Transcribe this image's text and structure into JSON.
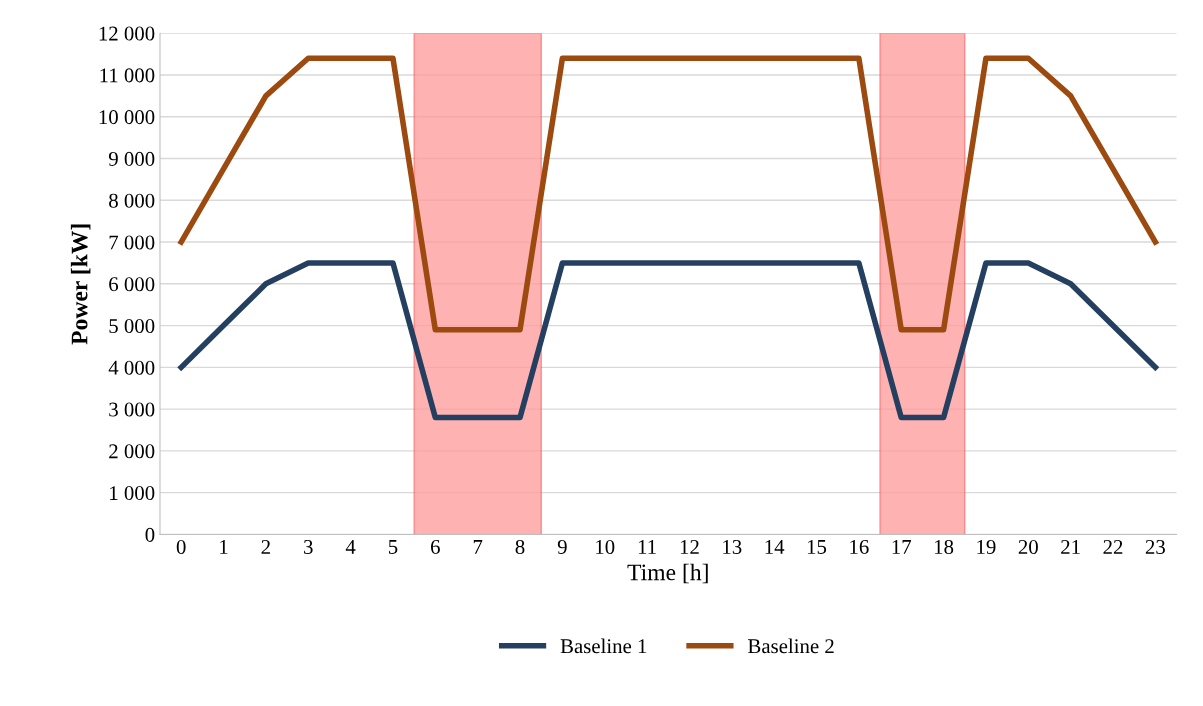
{
  "chart_data": {
    "type": "line",
    "xlabel": "Time [h]",
    "ylabel": "Power [kW]",
    "x": [
      0,
      1,
      2,
      3,
      4,
      5,
      6,
      7,
      8,
      9,
      10,
      11,
      12,
      13,
      14,
      15,
      16,
      17,
      18,
      19,
      20,
      21,
      22,
      23
    ],
    "series": [
      {
        "name": "Baseline 1",
        "color": "#243f60",
        "values": [
          4000,
          5000,
          6000,
          6500,
          6500,
          6500,
          2800,
          2800,
          2800,
          6500,
          6500,
          6500,
          6500,
          6500,
          6500,
          6500,
          6500,
          2800,
          2800,
          6500,
          6500,
          6000,
          5000,
          4000
        ]
      },
      {
        "name": "Baseline 2",
        "color": "#9c4a0f",
        "values": [
          7000,
          8750,
          10500,
          11400,
          11400,
          11400,
          4900,
          4900,
          4900,
          11400,
          11400,
          11400,
          11400,
          11400,
          11400,
          11400,
          11400,
          4900,
          4900,
          11400,
          11400,
          10500,
          8750,
          7000
        ]
      }
    ],
    "xlim": [
      -0.5,
      23.5
    ],
    "xticks": [
      0,
      1,
      2,
      3,
      4,
      5,
      6,
      7,
      8,
      9,
      10,
      11,
      12,
      13,
      14,
      15,
      16,
      17,
      18,
      19,
      20,
      21,
      22,
      23
    ],
    "ylim": [
      0,
      12000
    ],
    "yticks": [
      {
        "value": 0,
        "label": "0"
      },
      {
        "value": 1000,
        "label": "1 000"
      },
      {
        "value": 2000,
        "label": "2 000"
      },
      {
        "value": 3000,
        "label": "3 000"
      },
      {
        "value": 4000,
        "label": "4 000"
      },
      {
        "value": 5000,
        "label": "5 000"
      },
      {
        "value": 6000,
        "label": "6 000"
      },
      {
        "value": 7000,
        "label": "7 000"
      },
      {
        "value": 8000,
        "label": "8 000"
      },
      {
        "value": 9000,
        "label": "9 000"
      },
      {
        "value": 10000,
        "label": "10 000"
      },
      {
        "value": 11000,
        "label": "11 000"
      },
      {
        "value": 12000,
        "label": "12 000"
      }
    ],
    "bands": [
      {
        "axis": "x",
        "from": 5.5,
        "to": 8.5,
        "color": "#ff9999"
      },
      {
        "axis": "x",
        "from": 16.5,
        "to": 18.5,
        "color": "#ff9999"
      }
    ],
    "grid": "y",
    "legend": "bottom",
    "marker": "none",
    "line_style": "solid"
  }
}
